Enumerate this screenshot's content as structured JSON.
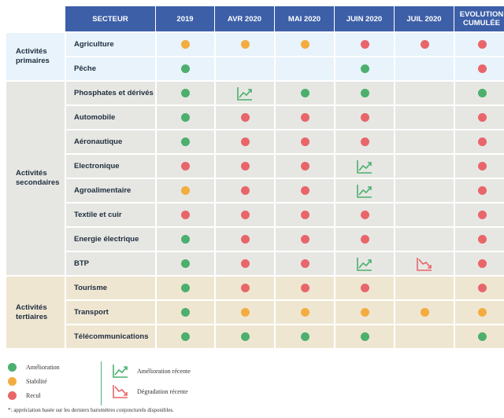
{
  "header": {
    "sector": "SECTEUR",
    "periods": [
      "2019",
      "AVR 2020",
      "MAI 2020",
      "JUIN 2020",
      "JUIL 2020",
      "EVOLUTION CUMULÉE"
    ]
  },
  "groups": [
    {
      "label": "Activités primaires",
      "theme": "primary",
      "rows": [
        {
          "sector": "Agriculture",
          "cells": [
            "stable",
            "stable",
            "stable",
            "decline",
            "decline",
            "decline"
          ]
        },
        {
          "sector": "Pêche",
          "cells": [
            "improve",
            "",
            "",
            "improve",
            "",
            "decline"
          ]
        }
      ]
    },
    {
      "label": "Activités secondaires",
      "theme": "secondary",
      "rows": [
        {
          "sector": "Phosphates et dérivés",
          "cells": [
            "improve",
            "recent-up",
            "improve",
            "improve",
            "",
            "improve"
          ]
        },
        {
          "sector": "Automobile",
          "cells": [
            "improve",
            "decline",
            "decline",
            "decline",
            "",
            "decline"
          ]
        },
        {
          "sector": "Aéronautique",
          "cells": [
            "improve",
            "decline",
            "decline",
            "decline",
            "",
            "decline"
          ]
        },
        {
          "sector": "Electronique",
          "cells": [
            "decline",
            "decline",
            "decline",
            "recent-up",
            "",
            "decline"
          ]
        },
        {
          "sector": "Agroalimentaire",
          "cells": [
            "stable",
            "decline",
            "decline",
            "recent-up",
            "",
            "decline"
          ]
        },
        {
          "sector": "Textile et cuir",
          "cells": [
            "decline",
            "decline",
            "decline",
            "decline",
            "",
            "decline"
          ]
        },
        {
          "sector": "Energie électrique",
          "cells": [
            "improve",
            "decline",
            "decline",
            "decline",
            "",
            "decline"
          ]
        },
        {
          "sector": "BTP",
          "cells": [
            "improve",
            "decline",
            "decline",
            "recent-up",
            "recent-down",
            "decline"
          ]
        }
      ]
    },
    {
      "label": "Activités tertiaires",
      "theme": "tertiary",
      "rows": [
        {
          "sector": "Tourisme",
          "cells": [
            "improve",
            "decline",
            "decline",
            "decline",
            "",
            "decline"
          ]
        },
        {
          "sector": "Transport",
          "cells": [
            "improve",
            "stable",
            "stable",
            "stable",
            "stable",
            "stable"
          ]
        },
        {
          "sector": "Télécommunications",
          "cells": [
            "improve",
            "improve",
            "improve",
            "improve",
            "",
            "improve"
          ]
        }
      ]
    }
  ],
  "colors": {
    "improve": "#4caf6e",
    "stable": "#f3ad3f",
    "decline": "#e8666a",
    "header_bg": "#3d5fa8"
  },
  "legend": {
    "improve": "Amélioration",
    "stable": "Stabilité",
    "decline": "Recul",
    "recent_up": "Amélioration récente",
    "recent_down": "Dégradation récente"
  },
  "footnote": "*: appréciation basée sur les derniers baromètres conjoncturels disponibles."
}
